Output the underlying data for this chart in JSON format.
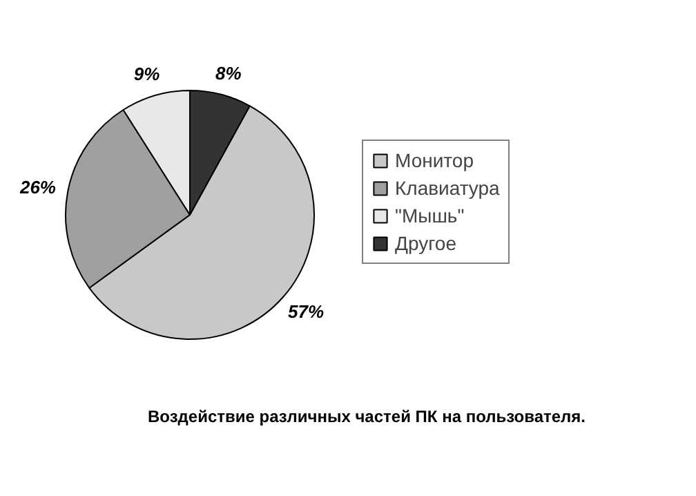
{
  "chart_data": {
    "type": "pie",
    "categories": [
      "Монитор",
      "Клавиатура",
      "\"Мышь\"",
      "Другое"
    ],
    "values": [
      57,
      26,
      9,
      8
    ],
    "colors": [
      "#c8c8c8",
      "#a0a0a0",
      "#e8e8e8",
      "#333333"
    ],
    "value_labels": [
      "57%",
      "26%",
      "9%",
      "8%"
    ],
    "legend": "right",
    "annotations": [
      "Воздействие различных частей ПК на пользователя."
    ]
  }
}
